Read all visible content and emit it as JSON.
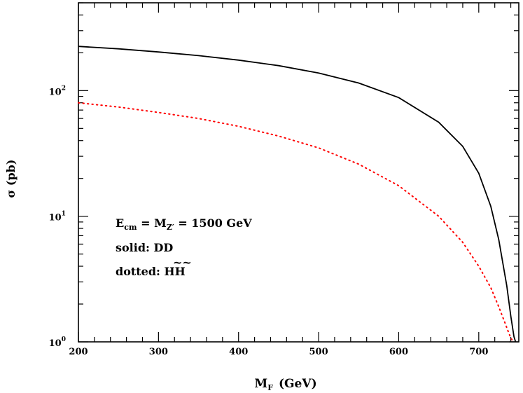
{
  "chart_data": {
    "type": "line",
    "xlabel_main": "M",
    "xlabel_sub": "F",
    "xlabel_unit": "(GeV)",
    "ylabel": "σ (pb)",
    "xlim": [
      200,
      750
    ],
    "ylim": [
      1,
      500
    ],
    "yscale": "log",
    "x_ticks": [
      200,
      300,
      400,
      500,
      600,
      700
    ],
    "x_tick_labels": [
      "200",
      "300",
      "400",
      "500",
      "600",
      "700"
    ],
    "y_ticks": [
      {
        "value": 1,
        "base": "10",
        "exp": "0"
      },
      {
        "value": 10,
        "base": "10",
        "exp": "1"
      },
      {
        "value": 100,
        "base": "10",
        "exp": "2"
      }
    ],
    "grid": false,
    "annotations": {
      "line1_E": "E",
      "line1_cm": "cm",
      "line1_eq": " = M",
      "line1_Zp": "Z′",
      "line1_val": " = 1500 GeV",
      "line2": "solid: DD",
      "line3_prefix": "dotted: ",
      "line3_tilde": "~~",
      "line3_HH": "HH"
    },
    "series": [
      {
        "style": "solid",
        "color": "#000000",
        "x": [
          200,
          250,
          300,
          350,
          400,
          450,
          500,
          550,
          600,
          650,
          680,
          700,
          715,
          725,
          735,
          740,
          744,
          746
        ],
        "y": [
          225,
          215,
          203,
          190,
          175,
          158,
          138,
          115,
          88,
          56,
          36,
          22,
          12,
          6.5,
          2.8,
          1.6,
          1.1,
          1.0
        ]
      },
      {
        "style": "dotted",
        "color": "#ff0000",
        "x": [
          200,
          250,
          300,
          350,
          400,
          450,
          500,
          550,
          600,
          650,
          680,
          700,
          715,
          725,
          733,
          738,
          741,
          743
        ],
        "y": [
          80,
          74,
          67,
          60,
          52,
          43.5,
          35,
          26,
          17.5,
          10,
          6.2,
          4.0,
          2.7,
          1.9,
          1.4,
          1.15,
          1.05,
          1.0
        ]
      }
    ]
  }
}
